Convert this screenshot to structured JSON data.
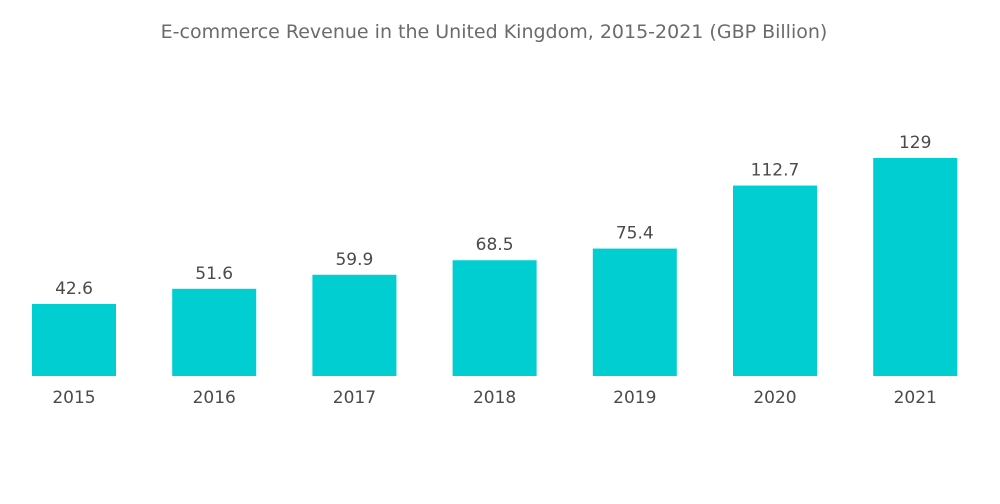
{
  "chart_data": {
    "type": "bar",
    "title": "E-commerce Revenue in the United Kingdom, 2015-2021 (GBP Billion)",
    "xlabel": "",
    "ylabel": "",
    "categories": [
      "2015",
      "2016",
      "2017",
      "2018",
      "2019",
      "2020",
      "2021"
    ],
    "values": [
      42.6,
      51.6,
      59.9,
      68.5,
      75.4,
      112.7,
      129
    ],
    "data_labels": [
      "42.6",
      "51.6",
      "59.9",
      "68.5",
      "75.4",
      "112.7",
      "129"
    ],
    "ylim": [
      0,
      129
    ],
    "grid": false,
    "legend": "none",
    "bar_color": "#00ced1"
  }
}
